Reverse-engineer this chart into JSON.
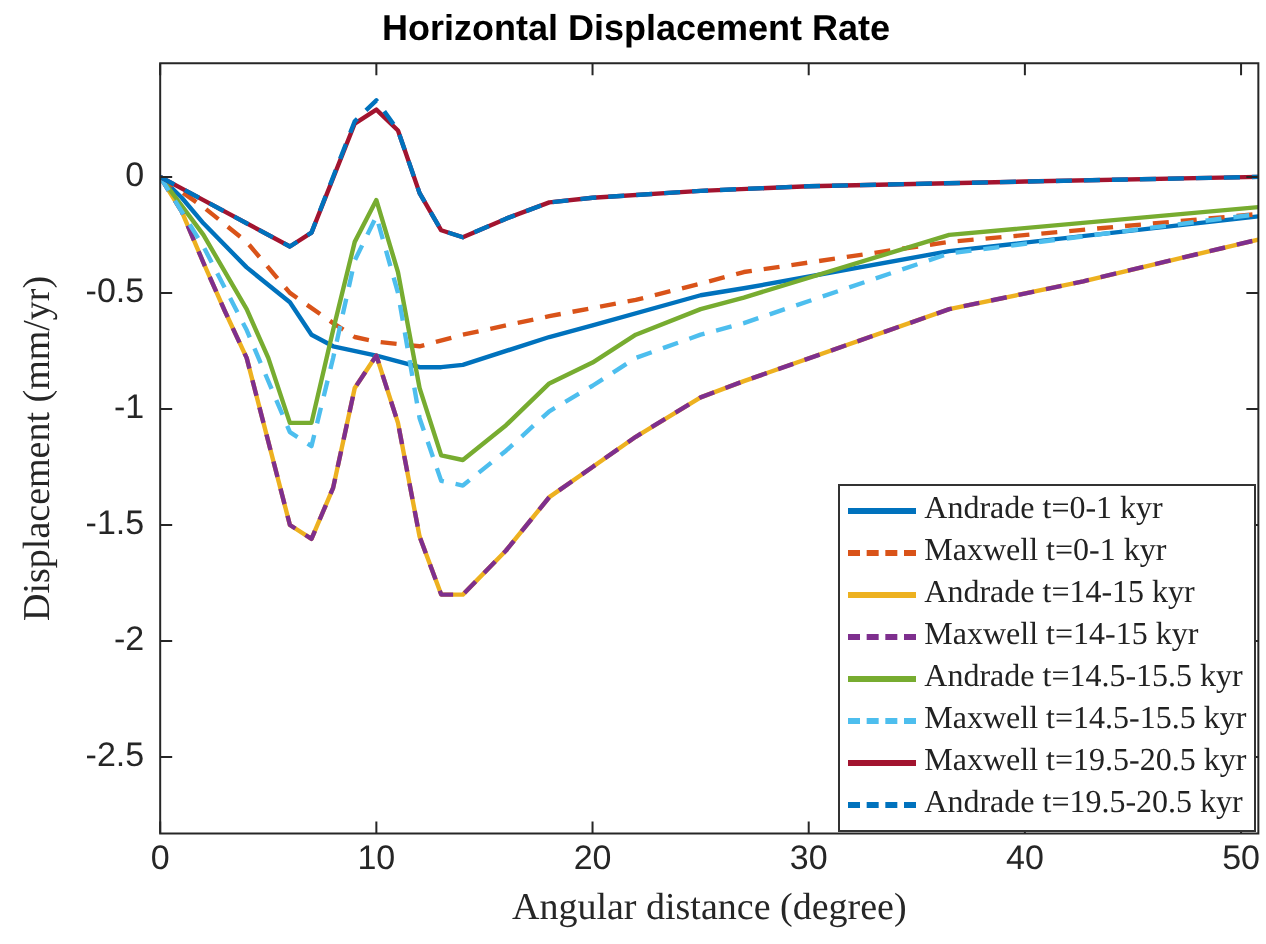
{
  "chart_data": {
    "type": "line",
    "title": "Horizontal Displacement Rate",
    "xlabel": "Angular distance (degree)",
    "ylabel": "Displacement (mm/yr)",
    "xlim": [
      0,
      50.8
    ],
    "ylim": [
      -2.83,
      0.49
    ],
    "xticks": [
      0,
      10,
      20,
      30,
      40,
      50
    ],
    "yticks": [
      -2.5,
      -2,
      -1.5,
      -1,
      -0.5,
      0
    ],
    "grid": false,
    "legend": "bottom right",
    "marker": "none",
    "series": [
      {
        "name": "Andrade t=0-1 kyr",
        "color": "#0072bd",
        "line_style": "solid",
        "x": [
          0,
          1,
          2,
          4,
          6,
          7,
          8,
          10,
          12,
          13,
          14,
          18,
          20,
          25,
          27,
          36.5,
          50.8
        ],
        "values": [
          0,
          -0.09,
          -0.2,
          -0.39,
          -0.54,
          -0.68,
          -0.73,
          -0.77,
          -0.82,
          -0.82,
          -0.81,
          -0.69,
          -0.64,
          -0.51,
          -0.48,
          -0.32,
          -0.17
        ]
      },
      {
        "name": "Maxwell t=0-1 kyr",
        "color": "#d95319",
        "line_style": "dashed",
        "x": [
          0,
          2,
          4,
          6,
          8,
          9,
          10,
          11,
          12,
          14,
          18,
          22,
          25,
          27,
          36.5,
          50.8
        ],
        "values": [
          0,
          -0.13,
          -0.28,
          -0.5,
          -0.63,
          -0.69,
          -0.71,
          -0.72,
          -0.73,
          -0.68,
          -0.6,
          -0.53,
          -0.46,
          -0.41,
          -0.28,
          -0.16
        ]
      },
      {
        "name": "Andrade t=14-15 kyr",
        "color": "#edb120",
        "line_style": "solid",
        "x": [
          0,
          1,
          2,
          3,
          4,
          6,
          7,
          8,
          9,
          10,
          11,
          12,
          13,
          14,
          16,
          18,
          20,
          22,
          25,
          27,
          36.5,
          42.7,
          50.8
        ],
        "values": [
          0,
          -0.15,
          -0.37,
          -0.58,
          -0.78,
          -1.5,
          -1.56,
          -1.34,
          -0.91,
          -0.77,
          -1.06,
          -1.55,
          -1.8,
          -1.8,
          -1.61,
          -1.38,
          -1.25,
          -1.12,
          -0.95,
          -0.88,
          -0.57,
          -0.45,
          -0.27
        ]
      },
      {
        "name": "Maxwell t=14-15 kyr",
        "color": "#7e2f8e",
        "line_style": "dashed",
        "x": [
          0,
          1,
          2,
          3,
          4,
          6,
          7,
          8,
          9,
          10,
          11,
          12,
          13,
          14,
          16,
          18,
          20,
          22,
          25,
          27,
          36.5,
          42.7,
          50.8
        ],
        "values": [
          0,
          -0.15,
          -0.37,
          -0.58,
          -0.78,
          -1.5,
          -1.56,
          -1.34,
          -0.91,
          -0.77,
          -1.06,
          -1.55,
          -1.8,
          -1.8,
          -1.61,
          -1.38,
          -1.25,
          -1.12,
          -0.95,
          -0.88,
          -0.57,
          -0.45,
          -0.27
        ]
      },
      {
        "name": "Andrade t=14.5-15.5 kyr",
        "color": "#77ac30",
        "line_style": "solid",
        "x": [
          0,
          2,
          4,
          5,
          6,
          7,
          8,
          9,
          10,
          11,
          12,
          13,
          14,
          16,
          18,
          20,
          22,
          25,
          27,
          36.5,
          50.8
        ],
        "values": [
          0,
          -0.25,
          -0.57,
          -0.78,
          -1.06,
          -1.06,
          -0.66,
          -0.28,
          -0.1,
          -0.41,
          -0.91,
          -1.2,
          -1.22,
          -1.07,
          -0.89,
          -0.8,
          -0.68,
          -0.57,
          -0.52,
          -0.25,
          -0.13
        ]
      },
      {
        "name": "Maxwell t=14.5-15.5 kyr",
        "color": "#4dbeee",
        "line_style": "dashed",
        "x": [
          0,
          2,
          4,
          6,
          7,
          8,
          9,
          10,
          11,
          12,
          13,
          14,
          16,
          18,
          20,
          22,
          25,
          27,
          36.5,
          50.8
        ],
        "values": [
          0,
          -0.3,
          -0.66,
          -1.1,
          -1.16,
          -0.78,
          -0.36,
          -0.17,
          -0.5,
          -1.04,
          -1.31,
          -1.33,
          -1.18,
          -1.01,
          -0.9,
          -0.78,
          -0.68,
          -0.63,
          -0.33,
          -0.16
        ]
      },
      {
        "name": "Maxwell t=19.5-20.5 kyr",
        "color": "#a2142f",
        "line_style": "solid",
        "x": [
          0,
          2,
          6,
          7,
          9,
          10,
          11,
          12,
          13,
          14,
          16,
          18,
          20,
          25,
          30,
          40,
          50.8
        ],
        "values": [
          0,
          -0.1,
          -0.3,
          -0.24,
          0.23,
          0.29,
          0.2,
          -0.07,
          -0.23,
          -0.26,
          -0.18,
          -0.11,
          -0.09,
          -0.06,
          -0.04,
          -0.02,
          0
        ]
      },
      {
        "name": "Andrade t=19.5-20.5 kyr",
        "color": "#0072bd",
        "line_style": "dashed",
        "x": [
          0,
          2,
          6,
          7,
          9,
          10,
          11,
          12,
          13,
          14,
          16,
          18,
          20,
          25,
          30,
          40,
          50.8
        ],
        "values": [
          0,
          -0.1,
          -0.3,
          -0.24,
          0.24,
          0.33,
          0.2,
          -0.07,
          -0.23,
          -0.26,
          -0.18,
          -0.11,
          -0.09,
          -0.06,
          -0.04,
          -0.02,
          0
        ]
      }
    ]
  }
}
